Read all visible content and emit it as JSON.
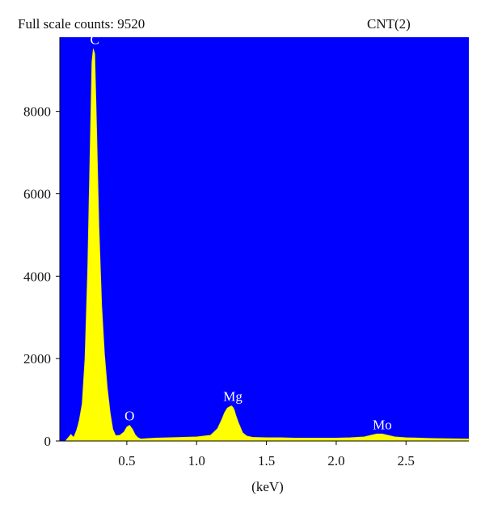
{
  "header": {
    "full_scale_text": "Full scale counts: 9520",
    "sample_name": "CNT(2)"
  },
  "chart_data": {
    "type": "area",
    "title": "",
    "xlabel": "(keV)",
    "ylabel": "",
    "xlim": [
      0.02,
      2.95
    ],
    "ylim": [
      0,
      9800
    ],
    "full_scale_counts": 9520,
    "x_ticks": [
      0.5,
      1.0,
      1.5,
      2.0,
      2.5
    ],
    "x_tick_labels": [
      "0.5",
      "1.0",
      "1.5",
      "2.0",
      "2.5"
    ],
    "y_ticks": [
      0,
      2000,
      4000,
      6000,
      8000
    ],
    "y_tick_labels": [
      "0",
      "2000",
      "4000",
      "6000",
      "8000"
    ],
    "grid": false,
    "colors": {
      "plot_background": "#0000ff",
      "spectrum_fill": "#ffff00",
      "peak_label": "#ffffff"
    },
    "spectrum": {
      "x": [
        0.06,
        0.08,
        0.1,
        0.11,
        0.12,
        0.14,
        0.15,
        0.16,
        0.18,
        0.2,
        0.22,
        0.24,
        0.25,
        0.26,
        0.27,
        0.28,
        0.29,
        0.3,
        0.32,
        0.34,
        0.36,
        0.38,
        0.4,
        0.42,
        0.45,
        0.48,
        0.5,
        0.52,
        0.54,
        0.56,
        0.58,
        0.6,
        0.65,
        0.7,
        0.8,
        0.9,
        1.0,
        1.1,
        1.15,
        1.18,
        1.2,
        1.22,
        1.24,
        1.25,
        1.26,
        1.27,
        1.28,
        1.3,
        1.33,
        1.36,
        1.4,
        1.5,
        1.6,
        1.7,
        1.8,
        1.9,
        2.0,
        2.1,
        2.2,
        2.25,
        2.29,
        2.33,
        2.37,
        2.42,
        2.5,
        2.6,
        2.7,
        2.8,
        2.95
      ],
      "counts": [
        0,
        80,
        160,
        120,
        90,
        260,
        380,
        520,
        900,
        2000,
        4200,
        7600,
        9200,
        9520,
        9400,
        8100,
        6700,
        5200,
        3300,
        2100,
        1300,
        700,
        280,
        130,
        140,
        220,
        340,
        380,
        290,
        150,
        80,
        50,
        60,
        70,
        80,
        90,
        100,
        140,
        300,
        520,
        690,
        800,
        840,
        850,
        820,
        750,
        630,
        440,
        200,
        120,
        90,
        80,
        80,
        70,
        70,
        70,
        70,
        80,
        100,
        140,
        170,
        170,
        140,
        100,
        80,
        70,
        60,
        55,
        50
      ]
    },
    "annotations": [
      {
        "text": "C",
        "x": 0.27,
        "y": 9520
      },
      {
        "text": "O",
        "x": 0.52,
        "y": 380
      },
      {
        "text": "Mg",
        "x": 1.26,
        "y": 850
      },
      {
        "text": "Mo",
        "x": 2.33,
        "y": 170
      }
    ]
  }
}
